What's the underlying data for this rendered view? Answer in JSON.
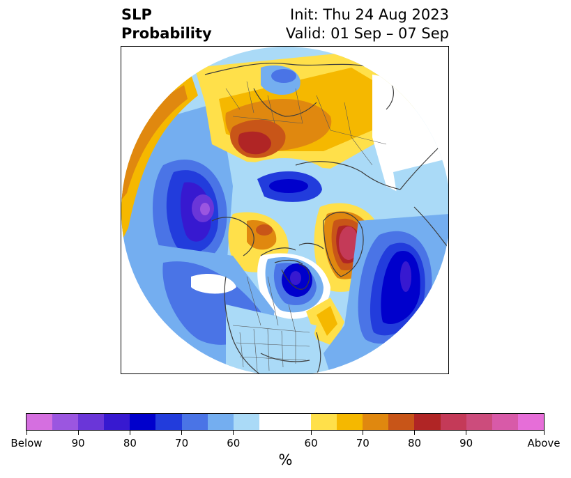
{
  "title": {
    "variable": "SLP",
    "field": "Probability",
    "init": "Init: Thu 24 Aug 2023",
    "valid": "Valid: 01 Sep – 07 Sep"
  },
  "map": {
    "projection": "north-polar-stereographic",
    "features": [
      "coastlines",
      "country-borders",
      "us-state-borders",
      "canadian-province-borders"
    ]
  },
  "colorbar": {
    "unit_label": "%",
    "colors": [
      "#d56fe0",
      "#9b56e0",
      "#6a36d8",
      "#3719d0",
      "#0000cc",
      "#223cdc",
      "#4a74e6",
      "#74aef0",
      "#aadaf7",
      "#ffffff",
      "#ffe04a",
      "#f5b800",
      "#e0880f",
      "#c85518",
      "#b02525",
      "#c43a58",
      "#cc4c7c",
      "#d85aa8",
      "#e66ed8"
    ],
    "white_segments": 2,
    "tick_labels": [
      "Below",
      "90",
      "80",
      "70",
      "60",
      "60",
      "70",
      "80",
      "90",
      "Above"
    ]
  }
}
